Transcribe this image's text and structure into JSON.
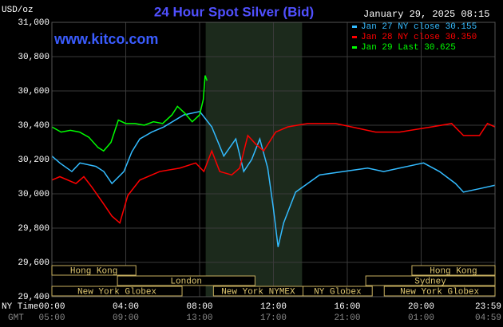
{
  "chart_data": {
    "type": "line",
    "title": "24 Hour Spot Silver (Bid)",
    "timestamp": "January 29, 2025 08:15",
    "y_unit": "USD/oz",
    "watermark": "www.kitco.com",
    "x_row_labels": [
      "NY Time",
      "GMT"
    ],
    "xlim": [
      0,
      24
    ],
    "ylim": [
      29.4,
      31
    ],
    "yticks": [
      {
        "value": 29.4,
        "label": "29,400"
      },
      {
        "value": 29.6,
        "label": "29,600"
      },
      {
        "value": 29.8,
        "label": "29,800"
      },
      {
        "value": 30,
        "label": "30,000"
      },
      {
        "value": 30.2,
        "label": "30,200"
      },
      {
        "value": 30.4,
        "label": "30,400"
      },
      {
        "value": 30.6,
        "label": "30,600"
      },
      {
        "value": 30.8,
        "label": "30,800"
      },
      {
        "value": 31,
        "label": "31,000"
      }
    ],
    "xticks": [
      {
        "value": 0,
        "label": "00:00"
      },
      {
        "value": 4,
        "label": "04:00"
      },
      {
        "value": 8,
        "label": "08:00"
      },
      {
        "value": 12,
        "label": "12:00"
      },
      {
        "value": 16,
        "label": "16:00"
      },
      {
        "value": 20,
        "label": "20:00"
      },
      {
        "value": 24,
        "label": "23:59"
      }
    ],
    "gmt_ticks": [
      {
        "value": 0,
        "label": "05:00"
      },
      {
        "value": 4,
        "label": "09:00"
      },
      {
        "value": 8,
        "label": "13:00"
      },
      {
        "value": 12,
        "label": "17:00"
      },
      {
        "value": 16,
        "label": "21:00"
      },
      {
        "value": 20,
        "label": "01:00"
      },
      {
        "value": 24,
        "label": "04:59"
      }
    ],
    "highlight": [
      8.33,
      13.55
    ],
    "grid": true,
    "sessions": [
      {
        "label": "Hong Kong",
        "start": 0,
        "end": 4.55
      },
      {
        "label": "Hong Kong",
        "start": 19.5,
        "end": 24
      },
      {
        "label": "London",
        "start": 3.55,
        "end": 11
      },
      {
        "label": "Sydney",
        "start": 17,
        "end": 24
      },
      {
        "label": "New York Globex",
        "start": 0,
        "end": 7.05
      },
      {
        "label": "New York NYMEX",
        "start": 8.75,
        "end": 13.6
      },
      {
        "label": "NY Globex",
        "start": 13.6,
        "end": 17.35
      },
      {
        "label": "New York Globex",
        "start": 18,
        "end": 24
      }
    ],
    "series": [
      {
        "name": "Jan 27 NY close 30.155",
        "color": "#33bbff",
        "x": [
          0,
          0.43,
          1.08,
          1.52,
          2.38,
          2.81,
          3.25,
          3.9,
          4.33,
          4.76,
          5.41,
          6.06,
          7.14,
          8.01,
          8.66,
          9.31,
          9.96,
          10.39,
          10.82,
          11.26,
          11.69,
          11.99,
          12.25,
          12.55,
          13.2,
          13.85,
          14.5,
          15.8,
          17.1,
          17.97,
          18.83,
          20.13,
          20.99,
          21.86,
          22.29,
          23.16,
          24
        ],
        "values": [
          30.22,
          30.18,
          30.13,
          30.18,
          30.16,
          30.13,
          30.06,
          30.13,
          30.245,
          30.32,
          30.36,
          30.39,
          30.46,
          30.48,
          30.39,
          30.22,
          30.32,
          30.13,
          30.2,
          30.32,
          30.15,
          29.92,
          29.69,
          29.83,
          30.01,
          30.06,
          30.11,
          30.13,
          30.15,
          30.13,
          30.15,
          30.18,
          30.13,
          30.06,
          30.01,
          30.03,
          30.05
        ]
      },
      {
        "name": "Jan 28 NY close 30.350",
        "color": "#ff0000",
        "x": [
          0,
          0.43,
          1.3,
          1.73,
          2.16,
          2.81,
          3.25,
          3.68,
          4.11,
          4.76,
          5.84,
          6.93,
          7.79,
          8.23,
          8.66,
          9.09,
          9.74,
          10.17,
          10.61,
          11.04,
          11.47,
          12.12,
          12.77,
          13.85,
          15.37,
          16.23,
          17.53,
          18.83,
          20.56,
          21.65,
          22.29,
          23.16,
          23.59,
          24
        ],
        "values": [
          30.08,
          30.1,
          30.06,
          30.1,
          30.04,
          29.94,
          29.87,
          29.83,
          29.99,
          30.08,
          30.13,
          30.15,
          30.18,
          30.13,
          30.25,
          30.13,
          30.11,
          30.15,
          30.34,
          30.29,
          30.25,
          30.36,
          30.39,
          30.41,
          30.41,
          30.39,
          30.36,
          30.36,
          30.39,
          30.41,
          30.34,
          30.34,
          30.41,
          30.39
        ]
      },
      {
        "name": "Jan 29 Last 30.625",
        "color": "#00ff00",
        "x": [
          0,
          0.5,
          1,
          1.5,
          2,
          2.5,
          2.8,
          3.2,
          3.6,
          4,
          4.5,
          5,
          5.5,
          6,
          6.5,
          6.8,
          7.2,
          7.6,
          8,
          8.2,
          8.3,
          8.4
        ],
        "values": [
          30.39,
          30.36,
          30.37,
          30.36,
          30.33,
          30.27,
          30.25,
          30.3,
          30.43,
          30.41,
          30.41,
          30.4,
          30.42,
          30.41,
          30.46,
          30.51,
          30.47,
          30.42,
          30.46,
          30.55,
          30.69,
          30.66
        ]
      }
    ]
  }
}
